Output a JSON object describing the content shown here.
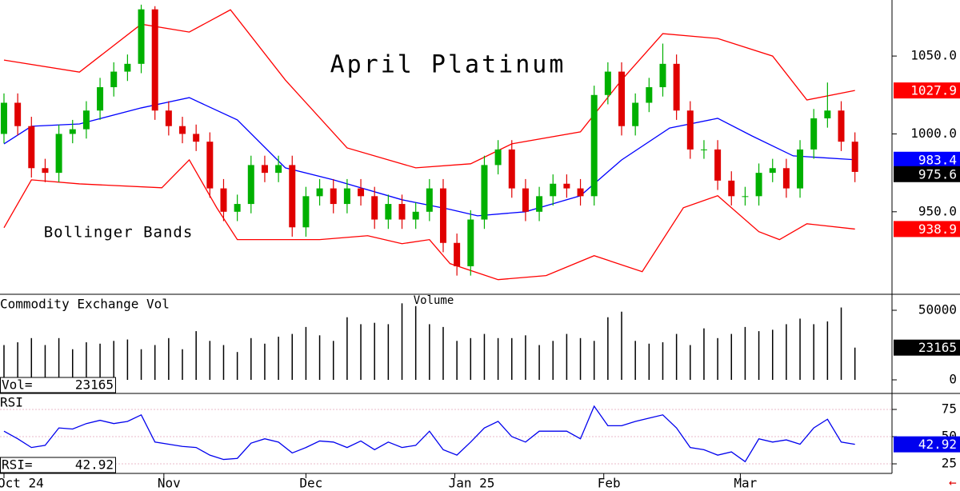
{
  "chart_data": [
    {
      "type": "candlestick",
      "title": "April Platinum",
      "subtitle": "Bollinger Bands",
      "x": [
        0,
        2,
        4,
        6,
        8,
        10,
        12,
        14,
        16,
        18,
        20,
        22,
        24,
        26,
        28,
        30,
        32,
        34,
        36,
        38,
        40,
        42,
        44,
        46,
        48,
        50,
        52,
        54,
        56,
        58,
        60,
        62,
        64,
        66,
        68,
        70,
        72,
        74,
        76,
        78,
        80,
        82,
        84,
        86,
        88,
        90,
        92,
        94,
        96,
        98,
        100,
        102,
        104,
        106,
        108,
        110,
        112,
        114,
        116,
        118,
        120,
        122,
        124
      ],
      "open": [
        1000,
        1020,
        1005,
        978,
        975,
        1000,
        1003,
        1015,
        1030,
        1040,
        1045,
        1080,
        1015,
        1005,
        1000,
        995,
        965,
        950,
        955,
        980,
        975,
        980,
        940,
        960,
        965,
        955,
        965,
        960,
        945,
        955,
        945,
        950,
        965,
        930,
        915,
        945,
        980,
        990,
        965,
        950,
        960,
        968,
        965,
        960,
        1025,
        1040,
        1005,
        1020,
        1030,
        1045,
        1015,
        990,
        990,
        970,
        960,
        960,
        975,
        978,
        965,
        990,
        1010,
        1015,
        995
      ],
      "high": [
        1026,
        1026,
        1011,
        984,
        1006,
        1009,
        1021,
        1036,
        1046,
        1051,
        1083,
        1082,
        1021,
        1011,
        1006,
        1001,
        971,
        961,
        986,
        986,
        986,
        986,
        966,
        971,
        971,
        971,
        971,
        966,
        961,
        961,
        956,
        971,
        971,
        936,
        951,
        986,
        996,
        996,
        971,
        966,
        974,
        974,
        971,
        1031,
        1046,
        1046,
        1026,
        1036,
        1058,
        1051,
        1021,
        996,
        996,
        976,
        966,
        981,
        984,
        984,
        996,
        1016,
        1033,
        1021,
        1001
      ],
      "low": [
        994,
        999,
        972,
        969,
        969,
        994,
        997,
        1009,
        1024,
        1034,
        1039,
        1009,
        999,
        994,
        989,
        959,
        944,
        944,
        949,
        969,
        969,
        934,
        934,
        954,
        949,
        949,
        954,
        939,
        939,
        939,
        939,
        944,
        924,
        909,
        909,
        939,
        974,
        959,
        944,
        944,
        954,
        959,
        954,
        954,
        1019,
        999,
        999,
        1014,
        1024,
        1009,
        984,
        984,
        964,
        954,
        954,
        954,
        969,
        959,
        959,
        984,
        1004,
        989,
        969
      ],
      "close": [
        1020,
        1005,
        978,
        975,
        1000,
        1003,
        1015,
        1030,
        1040,
        1045,
        1080,
        1015,
        1005,
        1000,
        995,
        965,
        950,
        955,
        980,
        975,
        980,
        940,
        960,
        965,
        955,
        965,
        960,
        945,
        955,
        945,
        950,
        965,
        930,
        915,
        945,
        980,
        990,
        965,
        950,
        960,
        968,
        965,
        960,
        1025,
        1040,
        1005,
        1020,
        1030,
        1045,
        1015,
        990,
        990,
        970,
        960,
        960,
        975,
        978,
        965,
        990,
        1010,
        1015,
        995,
        975.6
      ],
      "up_color": "#00b000",
      "down_color": "#e00000",
      "close_label_color": "#000000",
      "overlays": [
        {
          "color": "#ff0000",
          "x": [
            0,
            11,
            20,
            27,
            33,
            41,
            50,
            60,
            68,
            74,
            84,
            90,
            96,
            104,
            112,
            117,
            124
          ],
          "values": [
            1047.4,
            1039.7,
            1070.5,
            1065.4,
            1079.7,
            1034.6,
            991.0,
            978.2,
            980.8,
            993.6,
            1001.3,
            1034.6,
            1064.4,
            1061.3,
            1050,
            1021.8,
            1027.9
          ]
        },
        {
          "color": "#0000ff",
          "x": [
            0,
            4,
            11,
            20,
            27,
            34,
            41,
            48,
            58,
            65,
            69,
            76,
            84,
            90,
            97,
            104,
            109,
            115,
            124
          ],
          "values": [
            993.6,
            1004.9,
            1006.4,
            1016.7,
            1023.3,
            1009.0,
            978.2,
            970.5,
            957.7,
            951.5,
            947.4,
            950,
            960.3,
            983.3,
            1003.8,
            1010,
            998.7,
            985.9,
            983.4
          ]
        },
        {
          "color": "#ff0000",
          "x": [
            0,
            4,
            11,
            23,
            27,
            31,
            34,
            46,
            53,
            58,
            62,
            65,
            72,
            79,
            86,
            93,
            99,
            104,
            110,
            113,
            117,
            124
          ],
          "values": [
            939.7,
            970.5,
            967.9,
            965.4,
            983.3,
            952.6,
            932.1,
            932.1,
            934.6,
            929.5,
            932.1,
            916.7,
            906.4,
            909.0,
            921.8,
            911.5,
            952.6,
            960.3,
            937.2,
            932.1,
            942.3,
            938.9
          ]
        }
      ],
      "xlim": [
        -0.58,
        129.4
      ],
      "ylim": [
        897,
        1086
      ],
      "yticks": [
        {
          "value": 950,
          "label": "950.0"
        },
        {
          "value": 1000,
          "label": "1000.0"
        },
        {
          "value": 1050,
          "label": "1050.0"
        }
      ]
    },
    {
      "type": "bar",
      "title": "Commodity Exchange Vol",
      "subtitle": "Volume",
      "value_label": "Vol=",
      "x": [
        0,
        2,
        4,
        6,
        8,
        10,
        12,
        14,
        16,
        18,
        20,
        22,
        24,
        26,
        28,
        30,
        32,
        34,
        36,
        38,
        40,
        42,
        44,
        46,
        48,
        50,
        52,
        54,
        56,
        58,
        60,
        62,
        64,
        66,
        68,
        70,
        72,
        74,
        76,
        78,
        80,
        82,
        84,
        86,
        88,
        90,
        92,
        94,
        96,
        98,
        100,
        102,
        104,
        106,
        108,
        110,
        112,
        114,
        116,
        118,
        120,
        122,
        124
      ],
      "values": [
        25000,
        27000,
        30000,
        25000,
        30000,
        22000,
        27000,
        26000,
        28000,
        29000,
        22000,
        25000,
        30000,
        22000,
        35000,
        28000,
        25000,
        20000,
        30000,
        26000,
        31000,
        33000,
        38000,
        32000,
        28000,
        45000,
        40000,
        41000,
        40000,
        55000,
        53000,
        40000,
        38000,
        28000,
        30000,
        33000,
        30000,
        30000,
        32000,
        25000,
        28000,
        33000,
        30000,
        28000,
        45000,
        49000,
        28000,
        26000,
        27000,
        33000,
        25000,
        37000,
        30000,
        33000,
        38000,
        35000,
        36000,
        40000,
        44000,
        40000,
        42000,
        52000,
        23165
      ],
      "color": "#000000",
      "label_color": "#000000",
      "xlim": [
        -0.58,
        129.4
      ],
      "ylim": [
        -9770,
        61500
      ],
      "yticks": [
        0,
        50000
      ]
    },
    {
      "type": "line",
      "title": "RSI",
      "value_label": "RSI=",
      "x": [
        0,
        2,
        4,
        6,
        8,
        10,
        12,
        14,
        16,
        18,
        20,
        22,
        24,
        26,
        28,
        30,
        32,
        34,
        36,
        38,
        40,
        42,
        44,
        46,
        48,
        50,
        52,
        54,
        56,
        58,
        60,
        62,
        64,
        66,
        68,
        70,
        72,
        74,
        76,
        78,
        80,
        82,
        84,
        86,
        88,
        90,
        92,
        94,
        96,
        98,
        100,
        102,
        104,
        106,
        108,
        110,
        112,
        114,
        116,
        118,
        120,
        122,
        124
      ],
      "values": [
        55,
        48,
        40,
        42,
        58,
        57,
        62,
        65,
        62,
        64,
        70,
        45,
        43,
        41,
        40,
        33,
        29,
        30,
        44,
        48,
        45,
        35,
        40,
        46,
        45,
        40,
        46,
        38,
        45,
        40,
        42,
        55,
        38,
        33,
        45,
        58,
        64,
        50,
        45,
        55,
        55,
        55,
        48,
        78,
        60,
        60,
        64,
        67,
        70,
        58,
        40,
        38,
        33,
        36,
        27,
        48,
        45,
        47,
        43,
        58,
        66,
        45,
        42.92
      ],
      "color": "#0000ee",
      "grid": true,
      "grid_color": "#e8b8c8",
      "xlim": [
        -0.58,
        129.4
      ],
      "ylim": [
        16.2,
        89.7
      ],
      "yticks": [
        25,
        50,
        75
      ],
      "xticks": [
        {
          "value": 0,
          "label": "Oct 24"
        },
        {
          "value": 23.3,
          "label": "Nov"
        },
        {
          "value": 44,
          "label": "Dec"
        },
        {
          "value": 65.7,
          "label": "Jan 25"
        },
        {
          "value": 87.4,
          "label": "Feb"
        },
        {
          "value": 107.3,
          "label": "Mar"
        }
      ]
    }
  ]
}
